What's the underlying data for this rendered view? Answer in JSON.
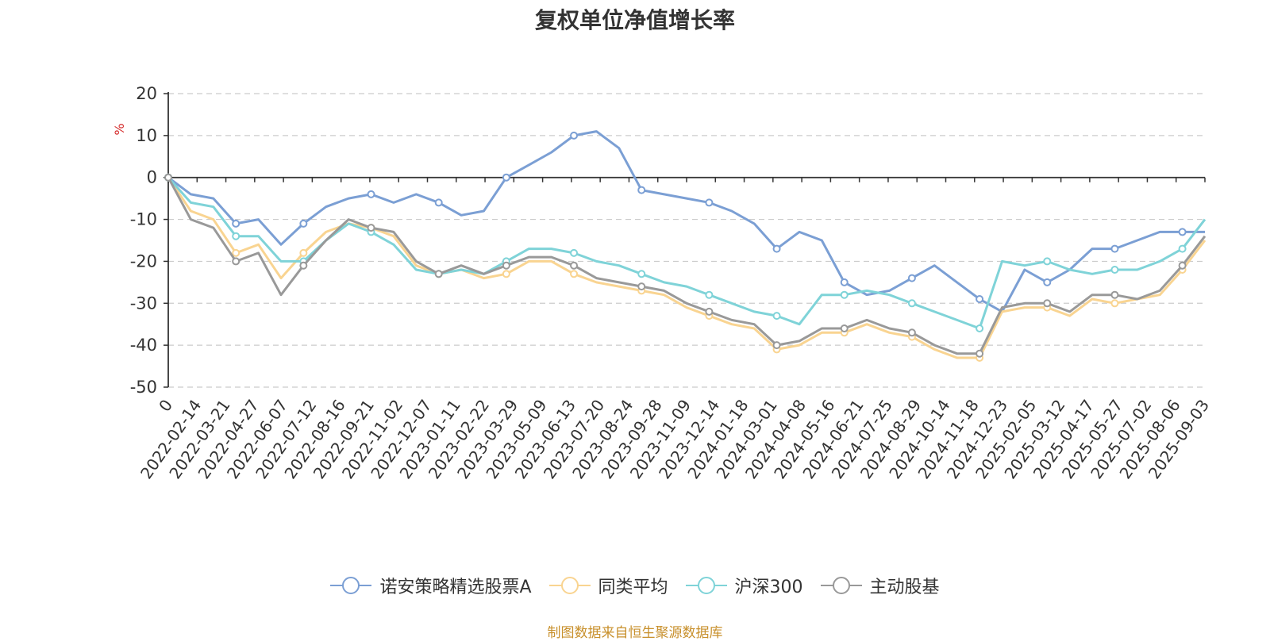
{
  "source_text": "制图数据来自恒生聚源数据库",
  "colors": {
    "source": "#c8902c",
    "axis_unit": "#d42b2b"
  },
  "chart_data": {
    "type": "line",
    "title": "复权单位净值增长率",
    "ylabel": "%",
    "ylim": [
      -50,
      20
    ],
    "yticks": [
      20,
      10,
      0,
      -10,
      -20,
      -30,
      -40,
      -50
    ],
    "grid": true,
    "legend_position": "bottom",
    "x_tick_labels": [
      "0",
      "2022-02-14",
      "2022-03-21",
      "2022-04-27",
      "2022-06-07",
      "2022-07-12",
      "2022-08-16",
      "2022-09-21",
      "2022-11-02",
      "2022-12-07",
      "2023-01-11",
      "2023-02-22",
      "2023-03-29",
      "2023-05-09",
      "2023-06-13",
      "2023-07-20",
      "2023-08-24",
      "2023-09-28",
      "2023-11-09",
      "2023-12-14",
      "2024-01-18",
      "2024-03-01",
      "2024-04-08",
      "2024-05-16",
      "2024-06-21",
      "2024-07-25",
      "2024-08-29",
      "2024-10-14",
      "2024-11-18",
      "2024-12-23",
      "2025-02-05",
      "2025-03-12",
      "2025-04-17",
      "2025-05-27",
      "2025-07-02",
      "2025-08-06",
      "2025-09-03"
    ],
    "series": [
      {
        "name": "诺安策略精选股票A",
        "color": "#7b9fd4",
        "values": [
          0,
          -4,
          -5,
          -11,
          -10,
          -16,
          -11,
          -7,
          -5,
          -4,
          -6,
          -4,
          -6,
          -9,
          -8,
          0,
          3,
          6,
          10,
          11,
          7,
          -3,
          -4,
          -5,
          -6,
          -8,
          -11,
          -17,
          -13,
          -15,
          -25,
          -28,
          -27,
          -24,
          -21,
          -25,
          -29,
          -32,
          -22,
          -25,
          -22,
          -17,
          -17,
          -15,
          -13,
          -13,
          -13
        ]
      },
      {
        "name": "同类平均",
        "color": "#f9d491",
        "values": [
          0,
          -8,
          -10,
          -18,
          -16,
          -24,
          -18,
          -13,
          -11,
          -12,
          -14,
          -21,
          -23,
          -22,
          -24,
          -23,
          -20,
          -20,
          -23,
          -25,
          -26,
          -27,
          -28,
          -31,
          -33,
          -35,
          -36,
          -41,
          -40,
          -37,
          -37,
          -35,
          -37,
          -38,
          -41,
          -43,
          -43,
          -32,
          -31,
          -31,
          -33,
          -29,
          -30,
          -29,
          -28,
          -22,
          -15
        ]
      },
      {
        "name": "沪深300",
        "color": "#7fd3d8",
        "values": [
          0,
          -6,
          -7,
          -14,
          -14,
          -20,
          -20,
          -15,
          -11,
          -13,
          -16,
          -22,
          -23,
          -22,
          -23,
          -20,
          -17,
          -17,
          -18,
          -20,
          -21,
          -23,
          -25,
          -26,
          -28,
          -30,
          -32,
          -33,
          -35,
          -28,
          -28,
          -27,
          -28,
          -30,
          -32,
          -34,
          -36,
          -20,
          -21,
          -20,
          -22,
          -23,
          -22,
          -22,
          -20,
          -17,
          -10
        ]
      },
      {
        "name": "主动股基",
        "color": "#999999",
        "values": [
          0,
          -10,
          -12,
          -20,
          -18,
          -28,
          -21,
          -15,
          -10,
          -12,
          -13,
          -20,
          -23,
          -21,
          -23,
          -21,
          -19,
          -19,
          -21,
          -24,
          -25,
          -26,
          -27,
          -30,
          -32,
          -34,
          -35,
          -40,
          -39,
          -36,
          -36,
          -34,
          -36,
          -37,
          -40,
          -42,
          -42,
          -31,
          -30,
          -30,
          -32,
          -28,
          -28,
          -29,
          -27,
          -21,
          -14
        ]
      }
    ]
  }
}
